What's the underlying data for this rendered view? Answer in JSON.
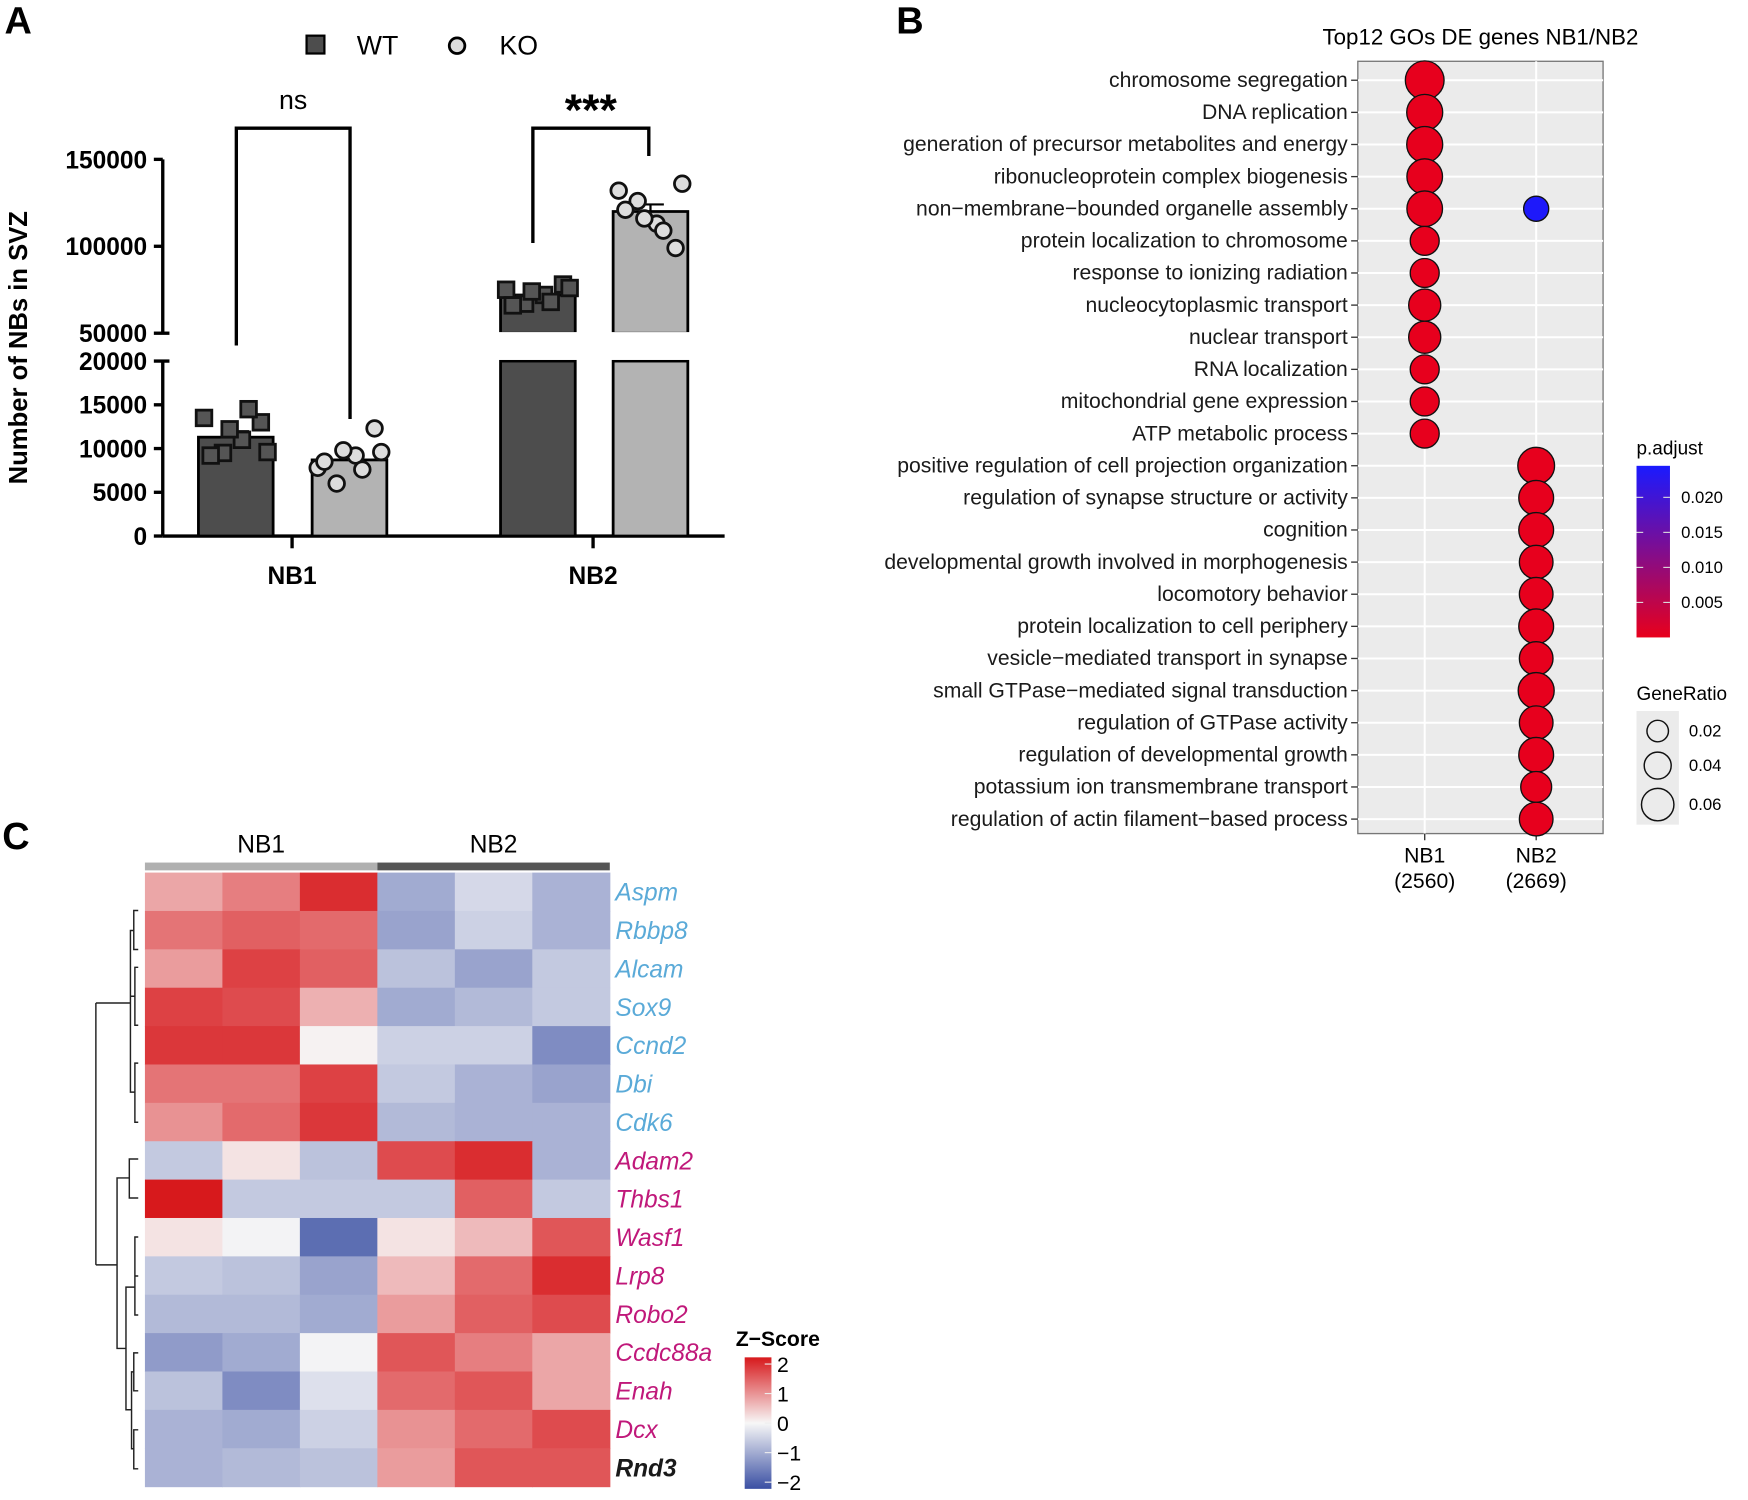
{
  "panels": {
    "a": "A",
    "b": "B",
    "c": "C"
  },
  "chart_data": [
    {
      "type": "bar",
      "title": "",
      "ylabel": "Number of NBs in SVZ",
      "xlabel": "",
      "categories": [
        "NB1",
        "NB2"
      ],
      "legend": {
        "placement": "top-center",
        "entries": [
          "WT",
          "KO"
        ]
      },
      "yticks": [
        "0",
        "5000",
        "10000",
        "15000",
        "20000",
        "50000",
        "100000",
        "150000"
      ],
      "ytick_values": [
        0,
        5000,
        10000,
        15000,
        20000,
        50000,
        100000,
        150000
      ],
      "axis_break": [
        20000,
        50000
      ],
      "series": [
        {
          "name": "WT",
          "color": "#4d4d4d",
          "values": [
            11300,
            72000
          ],
          "points": [
            [
              13500,
              9500,
              11000,
              13000,
              9200,
              12200,
              14500,
              9600
            ],
            [
              75000,
              67000,
              72000,
              78000,
              66000,
              74000,
              68000,
              76000
            ]
          ]
        },
        {
          "name": "KO",
          "color": "#b3b3b3",
          "values": [
            8700,
            120000
          ],
          "points": [
            [
              7800,
              6000,
              9200,
              12300,
              8500,
              9800,
              7600,
              9600
            ],
            [
              132000,
              126000,
              113000,
              99000,
              121000,
              116000,
              109000,
              136000
            ]
          ]
        }
      ],
      "significance": [
        {
          "category": "NB1",
          "label": "ns"
        },
        {
          "category": "NB2",
          "label": "***"
        }
      ]
    },
    {
      "type": "scatter",
      "title": "Top12 GOs DE genes NB1/NB2",
      "x_categories": [
        "NB1\n(2560)",
        "NB2\n(2669)"
      ],
      "x_labels": [
        {
          "name": "NB1",
          "count": "(2560)"
        },
        {
          "name": "NB2",
          "count": "(2669)"
        }
      ],
      "terms": [
        "chromosome segregation",
        "DNA replication",
        "generation of precursor metabolites and energy",
        "ribonucleoprotein complex biogenesis",
        "non−membrane−bounded organelle assembly",
        "protein localization to chromosome",
        "response to ionizing radiation",
        "nucleocytoplasmic transport",
        "nuclear transport",
        "RNA localization",
        "mitochondrial gene expression",
        "ATP metabolic process",
        "positive regulation of cell projection organization",
        "regulation of synapse structure or activity",
        "cognition",
        "developmental growth involved in morphogenesis",
        "locomotory behavior",
        "protein localization to cell periphery",
        "vesicle−mediated transport in synapse",
        "small GTPase−mediated signal transduction",
        "regulation of GTPase activity",
        "regulation of developmental growth",
        "potassium ion transmembrane transport",
        "regulation of actin filament−based process"
      ],
      "points": [
        {
          "cluster": 0,
          "term": 0,
          "gene_ratio": 0.065,
          "p_adjust": 0.0001
        },
        {
          "cluster": 0,
          "term": 1,
          "gene_ratio": 0.058,
          "p_adjust": 0.0001
        },
        {
          "cluster": 0,
          "term": 2,
          "gene_ratio": 0.058,
          "p_adjust": 0.0001
        },
        {
          "cluster": 0,
          "term": 3,
          "gene_ratio": 0.057,
          "p_adjust": 0.0001
        },
        {
          "cluster": 0,
          "term": 4,
          "gene_ratio": 0.057,
          "p_adjust": 0.0001
        },
        {
          "cluster": 1,
          "term": 4,
          "gene_ratio": 0.03,
          "p_adjust": 0.024
        },
        {
          "cluster": 0,
          "term": 5,
          "gene_ratio": 0.04,
          "p_adjust": 0.0001
        },
        {
          "cluster": 0,
          "term": 6,
          "gene_ratio": 0.04,
          "p_adjust": 0.0001
        },
        {
          "cluster": 0,
          "term": 7,
          "gene_ratio": 0.048,
          "p_adjust": 0.0001
        },
        {
          "cluster": 0,
          "term": 8,
          "gene_ratio": 0.048,
          "p_adjust": 0.0001
        },
        {
          "cluster": 0,
          "term": 9,
          "gene_ratio": 0.04,
          "p_adjust": 0.0001
        },
        {
          "cluster": 0,
          "term": 10,
          "gene_ratio": 0.04,
          "p_adjust": 0.0001
        },
        {
          "cluster": 0,
          "term": 11,
          "gene_ratio": 0.04,
          "p_adjust": 0.0001
        },
        {
          "cluster": 1,
          "term": 12,
          "gene_ratio": 0.06,
          "p_adjust": 0.0001
        },
        {
          "cluster": 1,
          "term": 13,
          "gene_ratio": 0.055,
          "p_adjust": 0.0001
        },
        {
          "cluster": 1,
          "term": 14,
          "gene_ratio": 0.055,
          "p_adjust": 0.0001
        },
        {
          "cluster": 1,
          "term": 15,
          "gene_ratio": 0.052,
          "p_adjust": 0.0001
        },
        {
          "cluster": 1,
          "term": 16,
          "gene_ratio": 0.052,
          "p_adjust": 0.0001
        },
        {
          "cluster": 1,
          "term": 17,
          "gene_ratio": 0.055,
          "p_adjust": 0.0001
        },
        {
          "cluster": 1,
          "term": 18,
          "gene_ratio": 0.052,
          "p_adjust": 0.0001
        },
        {
          "cluster": 1,
          "term": 19,
          "gene_ratio": 0.058,
          "p_adjust": 0.0001
        },
        {
          "cluster": 1,
          "term": 20,
          "gene_ratio": 0.052,
          "p_adjust": 0.0001
        },
        {
          "cluster": 1,
          "term": 21,
          "gene_ratio": 0.055,
          "p_adjust": 0.0001
        },
        {
          "cluster": 1,
          "term": 22,
          "gene_ratio": 0.045,
          "p_adjust": 0.0001
        },
        {
          "cluster": 1,
          "term": 23,
          "gene_ratio": 0.052,
          "p_adjust": 0.0001
        }
      ],
      "legend": {
        "color_title": "p.adjust",
        "color_ticks": [
          "0.020",
          "0.015",
          "0.010",
          "0.005"
        ],
        "color_tick_values": [
          0.02,
          0.015,
          0.01,
          0.005
        ],
        "color_low": "#e8001c",
        "color_high": "#1a1aff",
        "size_title": "GeneRatio",
        "size_ticks": [
          "0.02",
          "0.04",
          "0.06"
        ],
        "size_tick_values": [
          0.02,
          0.04,
          0.06
        ],
        "placement": "right"
      }
    },
    {
      "type": "heatmap",
      "column_groups": [
        {
          "name": "NB1",
          "color": "#b0b0b0"
        },
        {
          "name": "NB2",
          "color": "#555555"
        }
      ],
      "columns_per_group": 3,
      "rows": [
        {
          "gene": "Aspm",
          "color": "#5aaad8",
          "bold": false,
          "z": [
            0.8,
            1.2,
            2.0,
            -1.0,
            -0.4,
            -0.9
          ]
        },
        {
          "gene": "Rbbp8",
          "color": "#5aaad8",
          "bold": false,
          "z": [
            1.3,
            1.5,
            1.4,
            -1.1,
            -0.5,
            -0.9
          ]
        },
        {
          "gene": "Alcam",
          "color": "#5aaad8",
          "bold": false,
          "z": [
            0.9,
            1.8,
            1.5,
            -0.7,
            -1.1,
            -0.6
          ]
        },
        {
          "gene": "Sox9",
          "color": "#5aaad8",
          "bold": false,
          "z": [
            1.8,
            1.7,
            0.7,
            -1.0,
            -0.8,
            -0.6
          ]
        },
        {
          "gene": "Ccnd2",
          "color": "#5aaad8",
          "bold": false,
          "z": [
            1.9,
            1.9,
            0.05,
            -0.5,
            -0.5,
            -1.4
          ]
        },
        {
          "gene": "Dbi",
          "color": "#5aaad8",
          "bold": false,
          "z": [
            1.3,
            1.3,
            1.8,
            -0.6,
            -0.9,
            -1.1
          ]
        },
        {
          "gene": "Cdk6",
          "color": "#5aaad8",
          "bold": false,
          "z": [
            1.0,
            1.4,
            1.9,
            -0.8,
            -0.9,
            -0.9
          ]
        },
        {
          "gene": "Adam2",
          "color": "#c0187a",
          "bold": false,
          "z": [
            -0.6,
            0.2,
            -0.7,
            1.7,
            2.0,
            -0.9
          ]
        },
        {
          "gene": "Thbs1",
          "color": "#c0187a",
          "bold": false,
          "z": [
            2.5,
            -0.6,
            -0.6,
            -0.6,
            1.5,
            -0.6
          ]
        },
        {
          "gene": "Wasf1",
          "color": "#c0187a",
          "bold": false,
          "z": [
            0.2,
            -0.05,
            -1.8,
            0.2,
            0.6,
            1.6
          ]
        },
        {
          "gene": "Lrp8",
          "color": "#c0187a",
          "bold": false,
          "z": [
            -0.6,
            -0.7,
            -1.1,
            0.6,
            1.4,
            2.0
          ]
        },
        {
          "gene": "Robo2",
          "color": "#c0187a",
          "bold": false,
          "z": [
            -0.8,
            -0.8,
            -1.0,
            0.9,
            1.5,
            1.7
          ]
        },
        {
          "gene": "Ccdc88a",
          "color": "#c0187a",
          "bold": false,
          "z": [
            -1.2,
            -1.0,
            -0.05,
            1.6,
            1.2,
            0.8
          ]
        },
        {
          "gene": "Enah",
          "color": "#c0187a",
          "bold": false,
          "z": [
            -0.7,
            -1.4,
            -0.3,
            1.4,
            1.6,
            0.8
          ]
        },
        {
          "gene": "Dcx",
          "color": "#c0187a",
          "bold": false,
          "z": [
            -0.9,
            -1.0,
            -0.5,
            1.0,
            1.4,
            1.7
          ]
        },
        {
          "gene": "Rnd3",
          "color": "#1a1a1a",
          "bold": true,
          "z": [
            -0.9,
            -0.8,
            -0.7,
            0.9,
            1.6,
            1.6
          ]
        }
      ],
      "legend": {
        "title": "Z−Score",
        "ticks": [
          "2",
          "1",
          "0",
          "−1",
          "−2"
        ],
        "tick_values": [
          2,
          1,
          0,
          -1,
          -2
        ],
        "color_high": "#d7191c",
        "color_mid": "#f7f7f7",
        "color_low": "#3a4fa3"
      }
    }
  ]
}
